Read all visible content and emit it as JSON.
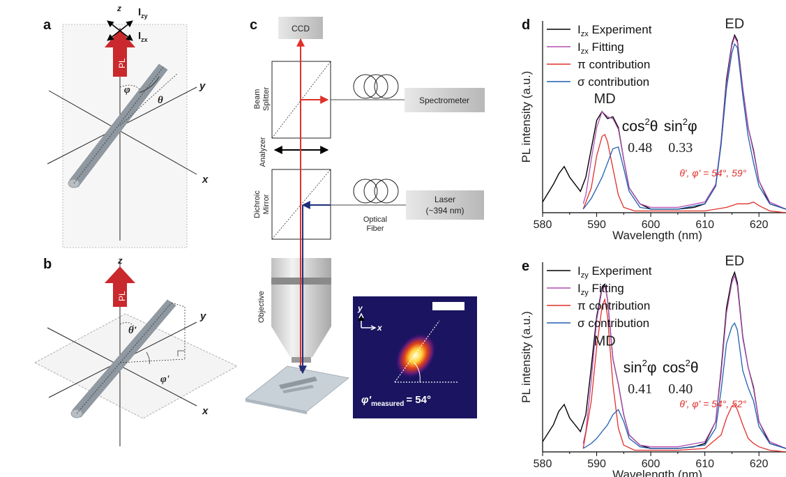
{
  "figure": {
    "panel_labels": {
      "a": "a",
      "b": "b",
      "c": "c",
      "d": "d",
      "e": "e"
    },
    "panel_a": {
      "axis_z": "z",
      "axis_y": "y",
      "axis_x": "x",
      "pl_label": "PL",
      "izy_main": "I",
      "izy_sub": "zy",
      "izx_main": "I",
      "izx_sub": "zx",
      "phi": "φ",
      "theta": "θ"
    },
    "panel_b": {
      "axis_z": "z",
      "axis_y": "y",
      "axis_x": "x",
      "pl_label": "PL",
      "theta_p": "θ'",
      "phi_p": "φ'"
    },
    "panel_c": {
      "ccd": "CCD",
      "beam_splitter_1": "Beam",
      "beam_splitter_2": "Splitter",
      "spectrometer": "Spectrometer",
      "analyzer": "Analyzer",
      "dichroic_1": "Dichroic",
      "dichroic_2": "Mirror",
      "laser_1": "Laser",
      "laser_2": "(~394 nm)",
      "fiber_1": "Optical",
      "fiber_2": "Fiber",
      "objective": "Objective",
      "inset_y": "y",
      "inset_x": "x",
      "inset_phi_main": "φ'",
      "inset_phi_sub": "measured",
      "inset_phi_value": "= 54°"
    },
    "colors": {
      "red": "#e0302a",
      "blue": "#1d2f7a",
      "pl_arrow": "#c9282d",
      "rod": "#9aa3ab"
    }
  },
  "chart_data": [
    {
      "type": "line",
      "panel": "d",
      "xlabel": "Wavelength (nm)",
      "ylabel": "PL intensity (a.u.)",
      "xlim": [
        580,
        625
      ],
      "xticks": [
        580,
        590,
        600,
        610,
        620
      ],
      "series": [
        {
          "name_main": "I",
          "name_sub": "zx",
          "name_rest": " Experiment",
          "color": "#000000",
          "x": [
            577,
            580,
            582,
            583,
            584,
            585,
            587,
            588,
            589,
            590,
            591,
            592,
            593,
            594,
            595,
            596,
            598,
            600,
            602,
            605,
            608,
            610,
            612,
            613,
            614,
            615,
            615.5,
            616,
            617,
            618,
            619,
            620,
            622,
            625
          ],
          "y": [
            0.05,
            0.06,
            0.16,
            0.22,
            0.26,
            0.2,
            0.12,
            0.2,
            0.36,
            0.52,
            0.57,
            0.53,
            0.54,
            0.48,
            0.3,
            0.14,
            0.05,
            0.02,
            0.02,
            0.02,
            0.03,
            0.05,
            0.15,
            0.4,
            0.75,
            0.95,
            1.0,
            0.97,
            0.7,
            0.48,
            0.35,
            0.18,
            0.05,
            0.02
          ]
        },
        {
          "name_main": "I",
          "name_sub": "zx",
          "name_rest": " Fitting",
          "color": "#b34fb3",
          "x": [
            587.5,
            588,
            589,
            590,
            591,
            592,
            593,
            594,
            595,
            596,
            598,
            600,
            605,
            610,
            612,
            613,
            614,
            615,
            615.5,
            616,
            617,
            618,
            619,
            620,
            622,
            625
          ],
          "y": [
            0.05,
            0.1,
            0.3,
            0.48,
            0.57,
            0.54,
            0.53,
            0.47,
            0.3,
            0.14,
            0.05,
            0.03,
            0.03,
            0.06,
            0.16,
            0.4,
            0.73,
            0.94,
            0.99,
            0.96,
            0.7,
            0.48,
            0.34,
            0.18,
            0.06,
            0.02
          ]
        },
        {
          "name_main": "π contribution",
          "name_sub": "",
          "name_rest": "",
          "color": "#e0302a",
          "x": [
            587.5,
            589,
            590,
            591,
            591.5,
            592,
            593,
            594,
            595,
            597,
            600,
            605,
            610,
            614,
            616,
            618,
            619,
            620,
            622,
            625
          ],
          "y": [
            0.02,
            0.14,
            0.32,
            0.43,
            0.44,
            0.4,
            0.25,
            0.1,
            0.03,
            0.01,
            0.01,
            0.01,
            0.01,
            0.03,
            0.05,
            0.05,
            0.06,
            0.04,
            0.01,
            0.0
          ]
        },
        {
          "name_main": "σ contribution",
          "name_sub": "",
          "name_rest": "",
          "color": "#1f5fb0",
          "x": [
            587.5,
            589,
            590,
            591,
            592,
            593,
            594,
            595,
            596,
            598,
            600,
            605,
            610,
            612,
            613,
            614,
            615,
            615.5,
            616,
            617,
            618,
            619,
            620,
            622,
            625
          ],
          "y": [
            0.02,
            0.08,
            0.14,
            0.2,
            0.28,
            0.36,
            0.37,
            0.25,
            0.12,
            0.03,
            0.02,
            0.02,
            0.05,
            0.15,
            0.38,
            0.7,
            0.9,
            0.95,
            0.93,
            0.66,
            0.43,
            0.28,
            0.15,
            0.05,
            0.02
          ]
        }
      ],
      "annotations": {
        "md": "MD",
        "ed": "ED",
        "term1": "cos",
        "term1_sup": "2",
        "term1_sym": "θ",
        "term1_value": "0.48",
        "term2": "sin",
        "term2_sup": "2",
        "term2_sym": "φ",
        "term2_value": "0.33",
        "angles": "θ', φ' = 54°, 59°"
      }
    },
    {
      "type": "line",
      "panel": "e",
      "xlabel": "Wavelength (nm)",
      "ylabel": "PL intensity (a.u.)",
      "xlim": [
        580,
        625
      ],
      "xticks": [
        580,
        590,
        600,
        610,
        620
      ],
      "series": [
        {
          "name_main": "I",
          "name_sub": "zy",
          "name_rest": " Experiment",
          "color": "#000000",
          "x": [
            577,
            580,
            582,
            583,
            584,
            585,
            587,
            588,
            589,
            590,
            591,
            591.5,
            592,
            593,
            594,
            595,
            596,
            598,
            600,
            602,
            605,
            608,
            610,
            612,
            613,
            614,
            615,
            615.5,
            616,
            617,
            618,
            619,
            620,
            622,
            625
          ],
          "y": [
            0.05,
            0.06,
            0.16,
            0.24,
            0.28,
            0.2,
            0.12,
            0.22,
            0.5,
            0.8,
            0.97,
            0.99,
            0.9,
            0.55,
            0.4,
            0.22,
            0.1,
            0.04,
            0.02,
            0.02,
            0.02,
            0.03,
            0.05,
            0.18,
            0.48,
            0.85,
            1.02,
            1.06,
            1.0,
            0.68,
            0.5,
            0.38,
            0.18,
            0.05,
            0.02
          ]
        },
        {
          "name_main": "I",
          "name_sub": "zy",
          "name_rest": " Fitting",
          "color": "#b34fb3",
          "x": [
            587.5,
            588,
            589,
            590,
            591,
            591.5,
            592,
            593,
            594,
            595,
            596,
            598,
            600,
            605,
            610,
            612,
            613,
            614,
            615,
            615.5,
            616,
            617,
            618,
            619,
            620,
            622,
            625
          ],
          "y": [
            0.05,
            0.12,
            0.42,
            0.78,
            0.96,
            0.98,
            0.9,
            0.55,
            0.4,
            0.22,
            0.1,
            0.04,
            0.03,
            0.03,
            0.06,
            0.18,
            0.46,
            0.82,
            1.0,
            1.04,
            0.98,
            0.67,
            0.5,
            0.37,
            0.18,
            0.06,
            0.02
          ]
        },
        {
          "name_main": "π contribution",
          "name_sub": "",
          "name_rest": "",
          "color": "#e0302a",
          "x": [
            587.5,
            589,
            590,
            591,
            591.5,
            592,
            593,
            594,
            595,
            597,
            600,
            605,
            610,
            613,
            614,
            615,
            615.5,
            616,
            617,
            618,
            619,
            620,
            622,
            625
          ],
          "y": [
            0.02,
            0.3,
            0.62,
            0.86,
            0.9,
            0.8,
            0.4,
            0.14,
            0.04,
            0.01,
            0.01,
            0.01,
            0.02,
            0.1,
            0.2,
            0.27,
            0.28,
            0.25,
            0.16,
            0.08,
            0.05,
            0.03,
            0.01,
            0.0
          ]
        },
        {
          "name_main": "σ contribution",
          "name_sub": "",
          "name_rest": "",
          "color": "#1f5fb0",
          "x": [
            587.5,
            589,
            590,
            591,
            592,
            593,
            594,
            595,
            596,
            598,
            600,
            605,
            610,
            612,
            613,
            614,
            615,
            615.5,
            616,
            617,
            618,
            619,
            620,
            622,
            625
          ],
          "y": [
            0.02,
            0.05,
            0.08,
            0.12,
            0.16,
            0.22,
            0.25,
            0.18,
            0.08,
            0.03,
            0.02,
            0.02,
            0.04,
            0.14,
            0.36,
            0.64,
            0.74,
            0.76,
            0.72,
            0.48,
            0.38,
            0.3,
            0.15,
            0.05,
            0.02
          ]
        }
      ],
      "annotations": {
        "md": "MD",
        "ed": "ED",
        "term1": "sin",
        "term1_sup": "2",
        "term1_sym": "φ",
        "term1_value": "0.41",
        "term2": "cos",
        "term2_sup": "2",
        "term2_sym": "θ",
        "term2_value": "0.40",
        "angles": "θ', φ' = 54°, 52°"
      }
    }
  ]
}
